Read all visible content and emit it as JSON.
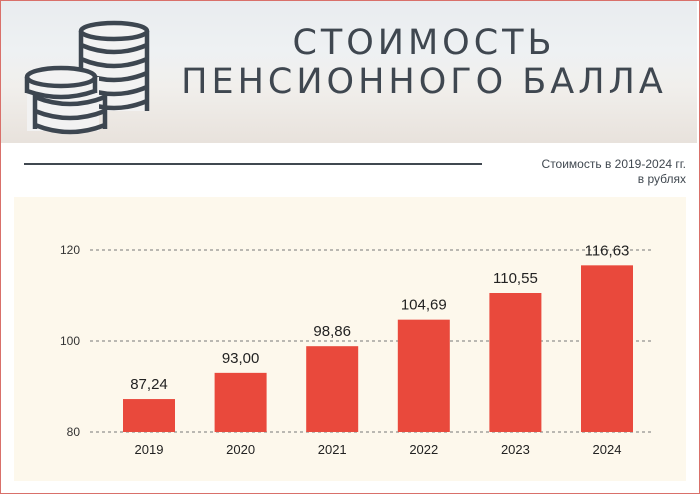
{
  "header": {
    "title_line1": "СТОИМОСТЬ",
    "title_line2": "ПЕНСИОННОГО БАЛЛА",
    "subtitle_line1": "Стоимость  в 2019-2024 гг.",
    "subtitle_line2": "в рублях"
  },
  "icons": {
    "coins": "coin-stack-icon"
  },
  "colors": {
    "bar": "#e9493c",
    "title": "#3f4750",
    "panel": "#fdf8ec",
    "coins": "#3d4650"
  },
  "chart_data": {
    "type": "bar",
    "categories": [
      "2019",
      "2020",
      "2021",
      "2022",
      "2023",
      "2024"
    ],
    "values": [
      87.24,
      93.0,
      98.86,
      104.69,
      110.55,
      116.63
    ],
    "value_labels": [
      "87,24",
      "93,00",
      "98,86",
      "104,69",
      "110,55",
      "116,63"
    ],
    "yticks": [
      80,
      100,
      120
    ],
    "ylim": [
      80,
      120
    ],
    "grid": "dashed horizontal at ticks"
  }
}
